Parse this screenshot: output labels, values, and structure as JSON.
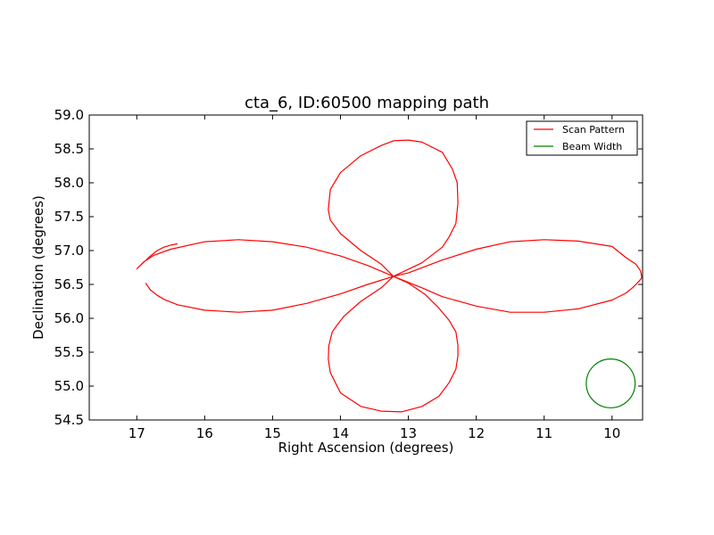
{
  "chart_data": {
    "type": "line",
    "title": "cta_6, ID:60500 mapping path",
    "xlabel": "Right Ascension (degrees)",
    "ylabel": "Declination (degrees)",
    "xlim": [
      17.7,
      9.55
    ],
    "ylim": [
      54.5,
      59.0
    ],
    "x_inverted": true,
    "grid": false,
    "legend_position": "top-right",
    "xticks": [
      17,
      16,
      15,
      14,
      13,
      12,
      11,
      10
    ],
    "yticks": [
      54.5,
      55.0,
      55.5,
      56.0,
      56.5,
      57.0,
      57.5,
      58.0,
      58.5,
      59.0
    ],
    "xtick_labels": [
      "17",
      "16",
      "15",
      "14",
      "13",
      "12",
      "11",
      "10"
    ],
    "ytick_labels": [
      "54.5",
      "55.0",
      "55.5",
      "56.0",
      "56.5",
      "57.0",
      "57.5",
      "58.0",
      "58.5",
      "59.0"
    ],
    "series": [
      {
        "name": "Scan Pattern",
        "color": "#ff0000",
        "x": [
          16.87,
          16.8,
          16.7,
          16.6,
          16.4,
          16.0,
          15.5,
          15.0,
          14.5,
          14.0,
          13.6,
          13.22,
          12.8,
          12.5,
          12.4,
          12.3,
          12.27,
          12.28,
          12.35,
          12.5,
          12.8,
          13.0,
          13.22,
          13.4,
          13.7,
          14.0,
          14.15,
          14.18,
          14.15,
          14.0,
          13.7,
          13.4,
          13.22,
          12.8,
          12.5,
          12.0,
          11.5,
          11.0,
          10.5,
          10.0,
          9.8,
          9.7,
          9.6,
          9.56,
          9.58,
          9.65,
          9.8,
          10.0,
          10.5,
          11.0,
          11.5,
          12.0,
          12.5,
          13.0,
          13.22,
          13.6,
          14.0,
          14.5,
          15.0,
          15.5,
          16.0,
          16.5,
          16.75,
          16.9,
          17.0,
          16.8,
          16.7,
          16.6,
          16.5,
          16.4
        ],
        "y": [
          56.52,
          56.42,
          56.34,
          56.28,
          56.2,
          56.12,
          56.09,
          56.12,
          56.22,
          56.36,
          56.5,
          56.62,
          56.82,
          57.05,
          57.2,
          57.4,
          57.7,
          58.0,
          58.2,
          58.45,
          58.6,
          58.63,
          58.62,
          58.55,
          58.4,
          58.15,
          57.9,
          57.6,
          57.45,
          57.25,
          57.0,
          56.8,
          56.62,
          56.45,
          56.32,
          56.18,
          56.09,
          56.09,
          56.14,
          56.27,
          56.37,
          56.45,
          56.55,
          56.6,
          56.7,
          56.8,
          56.9,
          57.06,
          57.14,
          57.16,
          57.13,
          57.02,
          56.86,
          56.67,
          56.62,
          56.78,
          56.92,
          57.05,
          57.13,
          57.16,
          57.13,
          57.02,
          56.93,
          56.83,
          56.73,
          56.92,
          57.0,
          57.05,
          57.08,
          57.1
        ],
        "segment2_x": [
          13.22,
          13.4,
          13.7,
          13.95,
          14.05,
          14.12,
          14.17,
          14.18,
          14.15,
          14.0,
          13.7,
          13.4,
          13.1,
          12.8,
          12.55,
          12.4,
          12.3,
          12.27,
          12.27,
          12.3,
          12.4,
          12.55,
          12.75,
          13.0,
          13.22
        ],
        "segment2_y": [
          56.62,
          56.45,
          56.25,
          56.03,
          55.9,
          55.8,
          55.6,
          55.4,
          55.2,
          54.9,
          54.7,
          54.63,
          54.62,
          54.7,
          54.85,
          55.05,
          55.25,
          55.45,
          55.6,
          55.8,
          55.97,
          56.15,
          56.35,
          56.52,
          56.62
        ]
      },
      {
        "name": "Beam Width",
        "color": "#008000",
        "type": "circle",
        "center_x": 10.02,
        "center_y": 55.04,
        "radius_deg_dec": 0.36
      }
    ]
  }
}
